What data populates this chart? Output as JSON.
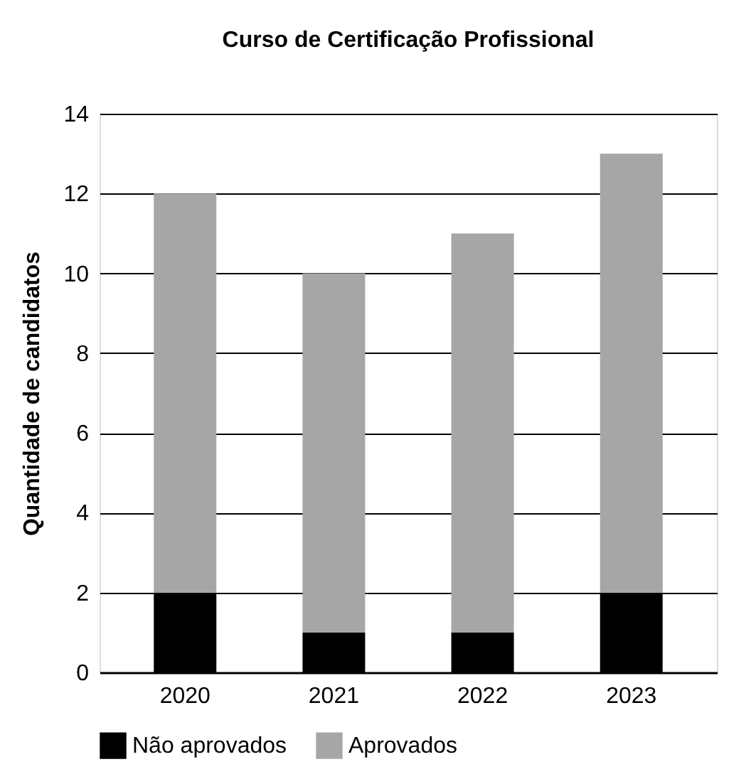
{
  "chart_data": {
    "type": "bar",
    "title": "Curso de Certificação Profissional",
    "ylabel": "Quantidade de candidatos",
    "categories": [
      "2020",
      "2021",
      "2022",
      "2023"
    ],
    "stacked": true,
    "series": [
      {
        "name": "Não aprovados",
        "color": "#000000",
        "values": [
          2,
          1,
          1,
          2
        ]
      },
      {
        "name": "Aprovados",
        "color": "#a6a6a6",
        "values": [
          10,
          9,
          10,
          11
        ]
      }
    ],
    "ylim": [
      0,
      14
    ],
    "yticks": [
      0,
      2,
      4,
      6,
      8,
      10,
      12,
      14
    ],
    "grid": "y",
    "legend": "bottom"
  }
}
